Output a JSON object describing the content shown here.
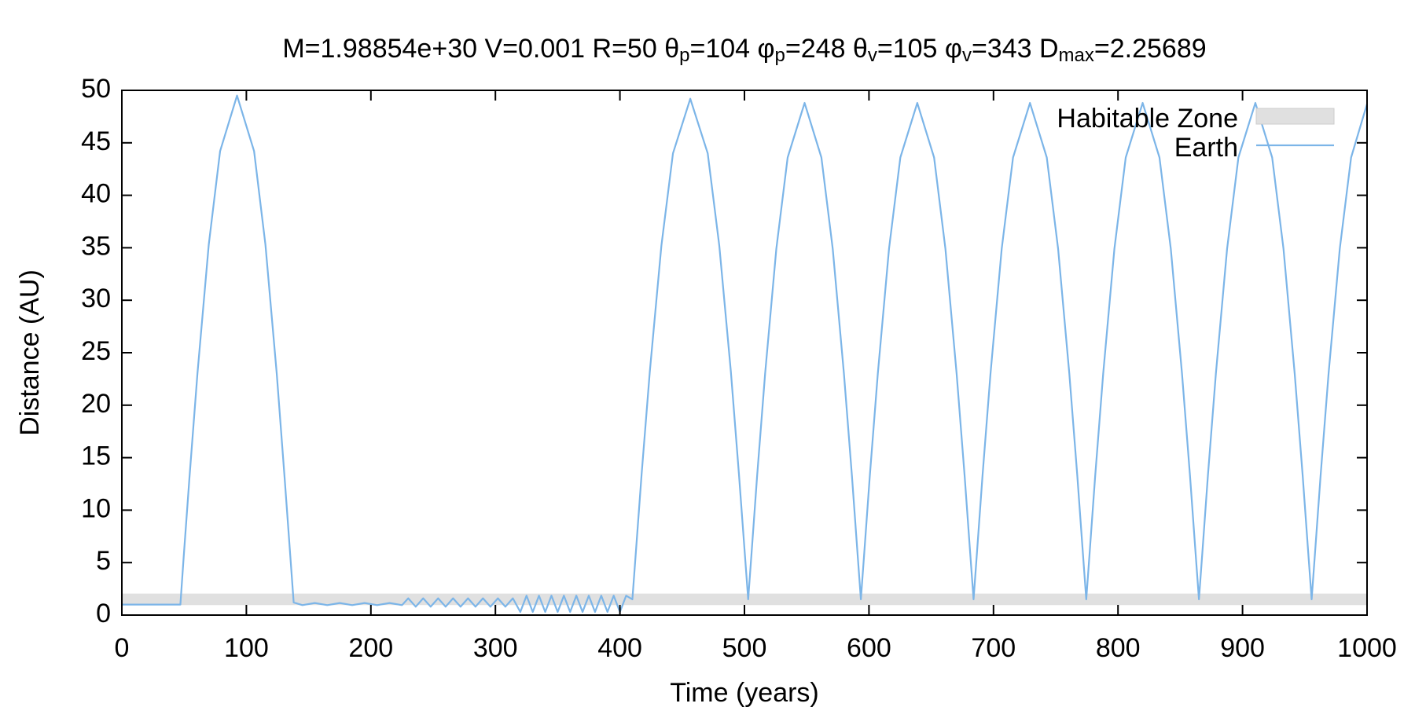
{
  "chart_data": {
    "type": "line",
    "title": [
      "M=1.98854e+30 V=0.001 R=50 θ",
      "p",
      "=104 φ",
      "p",
      "=248 θ",
      "v",
      "=105 φ",
      "v",
      "=343 D",
      "max",
      "=2.25689"
    ],
    "xlabel": "Time (years)",
    "ylabel": "Distance (AU)",
    "xlim": [
      0,
      1000
    ],
    "xticks": [
      0,
      100,
      200,
      300,
      400,
      500,
      600,
      700,
      800,
      900,
      1000
    ],
    "ylim": [
      0,
      50
    ],
    "yticks": [
      0,
      5,
      10,
      15,
      20,
      25,
      30,
      35,
      40,
      45,
      50
    ],
    "legend": "upper right",
    "bands": [
      {
        "name": "Habitable Zone",
        "color": "#e0e0e0",
        "range": [
          0.95,
          2.05
        ]
      }
    ],
    "series": [
      {
        "name": "Earth",
        "color": "#7cb5e8",
        "x": [
          0,
          47,
          49.7,
          54.3,
          60.7,
          69.8,
          78.9,
          92.5,
          106.2,
          115.3,
          124.4,
          130.7,
          135.3,
          138,
          145,
          155,
          165,
          175,
          185,
          195,
          205,
          215,
          225,
          230,
          236,
          242,
          248,
          254,
          260,
          266,
          272,
          278,
          284,
          290,
          296,
          302,
          308,
          314,
          320,
          325,
          330,
          335,
          340,
          345,
          350,
          355,
          360,
          365,
          370,
          375,
          380,
          385,
          390,
          395,
          400,
          405,
          410,
          412.8,
          417.4,
          424,
          433.3,
          442.6,
          456.5,
          470.5,
          479.8,
          489.1,
          495.6,
          500.2,
          503,
          505.7,
          510.2,
          516.6,
          525.6,
          534.7,
          548.3,
          561.8,
          570.9,
          579.9,
          586.3,
          590.8,
          593.5,
          596.2,
          600.7,
          607.1,
          616.1,
          625.2,
          638.8,
          652.3,
          661.4,
          670.4,
          676.8,
          681.3,
          684,
          686.7,
          691.2,
          697.6,
          706.6,
          715.7,
          729.3,
          742.8,
          751.9,
          760.9,
          767.3,
          771.8,
          774.5,
          777.2,
          781.7,
          788.1,
          797.1,
          806.2,
          819.8,
          833.3,
          842.4,
          851.4,
          857.8,
          862.3,
          865,
          867.7,
          872.2,
          878.6,
          887.6,
          896.7,
          910.3,
          923.8,
          932.9,
          941.9,
          948.3,
          952.8,
          955.5,
          958.2,
          962.7,
          969.1,
          978.1,
          987.2,
          1000
        ],
        "values": [
          1,
          1,
          5.6,
          13.1,
          23.0,
          35.3,
          44.2,
          49.5,
          44.2,
          35.3,
          23.0,
          13.1,
          5.6,
          1.2,
          0.95,
          1.15,
          0.95,
          1.15,
          0.95,
          1.15,
          0.95,
          1.15,
          0.95,
          1.6,
          0.8,
          1.6,
          0.8,
          1.6,
          0.8,
          1.6,
          0.8,
          1.6,
          0.8,
          1.6,
          0.8,
          1.6,
          0.8,
          1.6,
          0.3,
          1.85,
          0.3,
          1.85,
          0.3,
          1.85,
          0.3,
          1.85,
          0.3,
          1.85,
          0.3,
          1.85,
          0.3,
          1.85,
          0.3,
          1.85,
          0.3,
          1.85,
          1.5,
          6,
          13.4,
          23.2,
          35.2,
          44,
          49.2,
          44,
          35.2,
          23.2,
          13.4,
          6,
          1.5,
          5.9,
          13.3,
          23.0,
          34.9,
          43.6,
          48.8,
          43.6,
          34.9,
          23.0,
          13.3,
          5.9,
          1.5,
          5.9,
          13.3,
          23.0,
          34.9,
          43.6,
          48.8,
          43.6,
          34.9,
          23.0,
          13.3,
          5.9,
          1.5,
          5.9,
          13.3,
          23.0,
          34.9,
          43.6,
          48.8,
          43.6,
          34.9,
          23.0,
          13.3,
          5.9,
          1.5,
          5.9,
          13.3,
          23.0,
          34.9,
          43.6,
          48.8,
          43.6,
          34.9,
          23.0,
          13.3,
          5.9,
          1.5,
          5.9,
          13.3,
          23.0,
          34.9,
          43.6,
          48.8,
          43.6,
          34.9,
          23.0,
          13.3,
          5.9,
          1.5,
          5.9,
          13.3,
          23.0,
          34.9,
          43.6,
          48.7
        ]
      }
    ]
  }
}
